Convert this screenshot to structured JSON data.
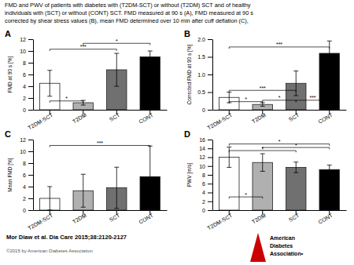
{
  "title": "FMD and PWV of patients with diabetes with (T2DM-SCT) or without (T2DM) SCT and of healthy\nindividuals with (SCT) or without (CONT) SCT. FMD measured at 90 s (A), FMD measured at 90 s\ncorrected by shear stress values (B), mean FMD determined over 10 min after cuff deflation (C),",
  "annotations": [
    "Mor Diaw et al. Dia Care 2015;38:2120-2127",
    "©2015 by American Diabetes Association",
    "American",
    "Diabetes",
    "Association•"
  ],
  "chart_data": [
    {
      "type": "bar",
      "title": "A",
      "y_label": "FMD at 90 s [%]",
      "categories": [
        "T2DM-SCT",
        "T2DM",
        "SCT",
        "CONT"
      ],
      "values": [
        4.5,
        1.2,
        6.8,
        9.0
      ],
      "errors": [
        2.2,
        0.4,
        2.8,
        1.0
      ],
      "colors": [
        "white",
        "#b0b0b0",
        "#707070",
        "black"
      ],
      "ylim": [
        0,
        12
      ],
      "yticks": [
        0,
        2,
        4,
        6,
        8,
        10,
        12
      ],
      "grid": false,
      "brackets": [
        {
          "from": "T2DM-SCT",
          "to": "T2DM",
          "y": 1.5,
          "label": "*"
        },
        {
          "from": "T2DM-SCT",
          "to": "SCT",
          "y": 10.3,
          "label": "***"
        },
        {
          "from": "T2DM",
          "to": "CONT",
          "y": 11.3,
          "label": "*"
        }
      ]
    },
    {
      "type": "bar",
      "title": "B",
      "y_label": "Corrected FMD at 90 s [%]",
      "categories": [
        "T2DM-SCT",
        "T2DM",
        "SCT",
        "CONT"
      ],
      "values": [
        0.35,
        0.15,
        0.75,
        1.6
      ],
      "errors": [
        0.15,
        0.05,
        0.35,
        0.35
      ],
      "colors": [
        "white",
        "#b0b0b0",
        "#707070",
        "black"
      ],
      "ylim": [
        0,
        2
      ],
      "yticks": [
        0,
        0.5,
        {
          "value": 1,
          "label": "1.0"
        },
        1.5,
        {
          "value": 2,
          "label": "2.0"
        }
      ],
      "grid": false,
      "brackets": [
        {
          "from": "T2DM-SCT",
          "to": "T2DM",
          "y": 0.23,
          "label": "*"
        },
        {
          "from": "T2DM-SCT",
          "to": "SCT",
          "y": 0.55,
          "label": "***"
        },
        {
          "from": "T2DM-SCT",
          "to": "CONT",
          "y": 1.78,
          "label": "***"
        },
        {
          "from": "T2DM",
          "to": "SCT",
          "y": 0.27,
          "label": "*"
        },
        {
          "from": "SCT",
          "to": "CONT",
          "y": 0.27,
          "label": "***"
        }
      ]
    },
    {
      "type": "bar",
      "title": "C",
      "y_label": "Mean FMD [%]",
      "categories": [
        "T2DM-SCT",
        "T2DM",
        "SCT",
        "CONT"
      ],
      "values": [
        2.0,
        3.3,
        3.8,
        5.7
      ],
      "errors": [
        2.0,
        2.8,
        3.5,
        5.2
      ],
      "colors": [
        "white",
        "#b0b0b0",
        "#707070",
        "black"
      ],
      "ylim": [
        0,
        12
      ],
      "yticks": [
        0,
        2,
        4,
        6,
        8,
        10,
        12
      ],
      "grid": false,
      "brackets": [
        {
          "from": "T2DM-SCT",
          "to": "CONT",
          "y": 11.0,
          "label": "***"
        }
      ]
    },
    {
      "type": "bar",
      "title": "D",
      "y_label": "PWV [m/s]",
      "categories": [
        "T2DM-SCT",
        "T2DM",
        "SCT",
        "CONT"
      ],
      "values": [
        12.0,
        10.8,
        9.7,
        9.2
      ],
      "errors": [
        2.3,
        2.0,
        1.2,
        1.0
      ],
      "colors": [
        "white",
        "#b0b0b0",
        "#707070",
        "black"
      ],
      "ylim": [
        0,
        16
      ],
      "yticks": [
        0,
        2,
        4,
        6,
        8,
        10,
        12,
        14,
        16
      ],
      "grid": false,
      "brackets": [
        {
          "from": "T2DM-SCT",
          "to": "T2DM",
          "y": 3.0,
          "label": "*"
        },
        {
          "from": "T2DM-SCT",
          "to": "SCT",
          "y": 13.5,
          "label": "*"
        },
        {
          "from": "T2DM-SCT",
          "to": "CONT",
          "y": 15.0,
          "label": "*"
        },
        {
          "from": "T2DM",
          "to": "CONT",
          "y": 14.2,
          "label": "*"
        }
      ]
    }
  ]
}
